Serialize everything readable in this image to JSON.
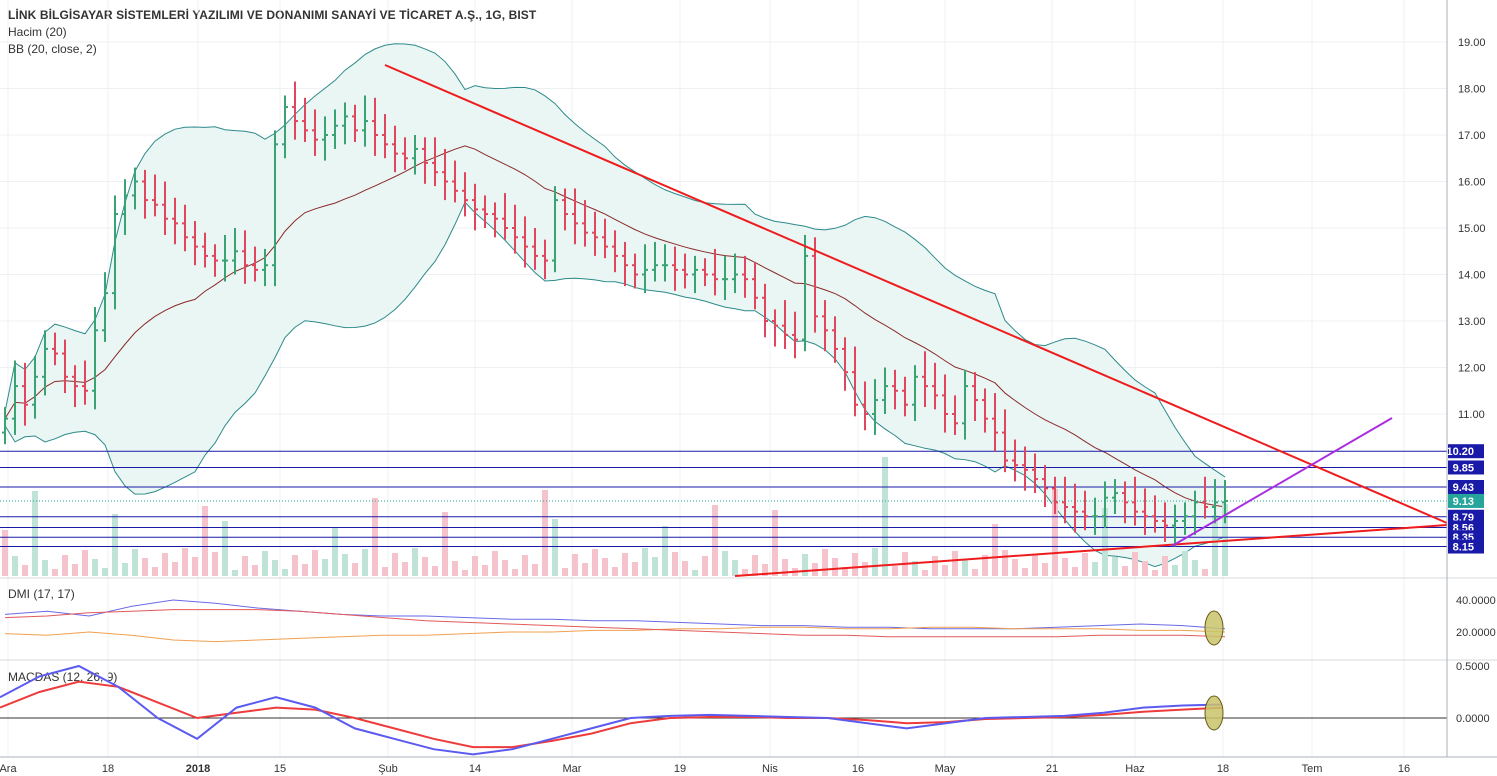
{
  "header": {
    "title": "LİNK BİLGİSAYAR SİSTEMLERİ YAZILIMI VE DONANIMI SANAYİ VE TİCARET A.Ş., 1G, BIST",
    "volume_label": "Hacim (20)",
    "bb_label": "BB (20, close, 2)"
  },
  "dmi": {
    "label": "DMI (17, 17)",
    "ticks": [
      "40.0000",
      "20.0000"
    ]
  },
  "macd": {
    "label": "MACDAS (12, 26, 9)",
    "ticks": [
      "0.5000",
      "0.0000"
    ]
  },
  "price_axis": {
    "ticks": [
      "19.00",
      "18.00",
      "17.00",
      "16.00",
      "15.00",
      "14.00",
      "13.00",
      "12.00",
      "11.00"
    ],
    "badges": [
      {
        "value": "10.20",
        "color": "#1a1aa8"
      },
      {
        "value": "9.85",
        "color": "#1a1aa8"
      },
      {
        "value": "9.43",
        "color": "#1a1aa8"
      },
      {
        "value": "9.13",
        "color": "#26a69a"
      },
      {
        "value": "8.79",
        "color": "#1a1aa8"
      },
      {
        "value": "8.56",
        "color": "#1a1aa8"
      },
      {
        "value": "8.35",
        "color": "#1a1aa8"
      },
      {
        "value": "8.15",
        "color": "#1a1aa8"
      }
    ]
  },
  "time_axis": {
    "labels": [
      "Ara",
      "18",
      "2018",
      "15",
      "Şub",
      "14",
      "Mar",
      "19",
      "Nis",
      "16",
      "May",
      "21",
      "Haz",
      "18",
      "Tem",
      "16"
    ]
  },
  "colors": {
    "up": "#3aa373",
    "down": "#e0465d",
    "band_fill": "#e9f6f4",
    "band_line": "#2d8a8a",
    "basis": "#8b2a2a",
    "trend": "#ee1c1c",
    "purple": "#a92ee0",
    "hline": "#1a1aa8",
    "macd": "#5b5bf0",
    "signal": "#ee3b3b",
    "dmi_plus": "#6a6ae8",
    "dmi_minus": "#f0a050",
    "adx": "#e25a5a"
  },
  "chart_data": {
    "type": "candlestick",
    "interval": "1G",
    "symbol": "BIST",
    "ylim": [
      8.0,
      19.4
    ],
    "horizontal_levels": [
      10.2,
      9.85,
      9.43,
      8.79,
      8.56,
      8.35,
      8.15
    ],
    "last_price": 9.13,
    "close_series": [
      10.9,
      11.6,
      11.2,
      11.8,
      12.4,
      12.3,
      11.8,
      11.6,
      11.5,
      12.8,
      13.6,
      15.3,
      15.7,
      16.0,
      15.6,
      15.5,
      15.2,
      15.1,
      14.8,
      14.6,
      14.4,
      14.3,
      14.3,
      14.5,
      14.2,
      14.1,
      14.2,
      16.8,
      17.6,
      17.3,
      17.1,
      16.9,
      17.0,
      17.2,
      17.4,
      17.1,
      17.3,
      17.0,
      16.8,
      16.6,
      16.5,
      16.7,
      16.4,
      16.2,
      16.0,
      15.8,
      15.6,
      15.4,
      15.3,
      15.2,
      15.0,
      14.8,
      14.6,
      14.4,
      14.3,
      15.6,
      15.3,
      15.1,
      14.9,
      14.8,
      14.6,
      14.4,
      14.2,
      14.0,
      14.1,
      14.2,
      14.2,
      14.1,
      14.0,
      14.1,
      14.0,
      13.9,
      13.9,
      14.0,
      13.9,
      13.5,
      13.0,
      12.9,
      12.7,
      12.6,
      14.4,
      13.1,
      12.8,
      12.4,
      11.9,
      11.2,
      11.0,
      11.3,
      11.6,
      11.5,
      11.2,
      11.8,
      11.6,
      11.4,
      11.0,
      10.8,
      11.6,
      11.3,
      10.9,
      10.6,
      10.0,
      9.9,
      9.8,
      9.6,
      9.4,
      9.1,
      9.0,
      8.9,
      8.8,
      8.8,
      9.2,
      9.3,
      9.1,
      8.9,
      8.8,
      8.7,
      8.6,
      8.7,
      8.8,
      9.1,
      9.0,
      9.1,
      9.13
    ],
    "volume_note": "volume histogram overlay at bottom of price pane",
    "dmi_series": {
      "plus_di": [
        31,
        33,
        30,
        36,
        40,
        38,
        35,
        33,
        31,
        30,
        30,
        29,
        28,
        28,
        27,
        27,
        26,
        25,
        24,
        24,
        23,
        23,
        22,
        22,
        22,
        23,
        24,
        25,
        24,
        22
      ],
      "minus_di": [
        19,
        18,
        20,
        18,
        15,
        14,
        15,
        16,
        17,
        18,
        18,
        19,
        20,
        20,
        21,
        21,
        22,
        22,
        23,
        23,
        22,
        22,
        23,
        23,
        22,
        22,
        22,
        21,
        21,
        20
      ],
      "adx": [
        29,
        30,
        32,
        33,
        34,
        34,
        34,
        33,
        31,
        29,
        27,
        26,
        25,
        24,
        23,
        22,
        21,
        20,
        19,
        18,
        18,
        17,
        17,
        17,
        17,
        17,
        18,
        18,
        18,
        17
      ]
    },
    "macd_series": {
      "macd": [
        0.2,
        0.4,
        0.5,
        0.3,
        0.0,
        -0.2,
        0.1,
        0.2,
        0.1,
        -0.1,
        -0.2,
        -0.3,
        -0.35,
        -0.3,
        -0.2,
        -0.1,
        0.0,
        0.02,
        0.03,
        0.02,
        0.01,
        0.0,
        -0.05,
        -0.1,
        -0.05,
        0.0,
        0.01,
        0.02,
        0.05,
        0.1,
        0.12,
        0.13
      ],
      "signal": [
        0.1,
        0.25,
        0.35,
        0.3,
        0.15,
        0.0,
        0.05,
        0.1,
        0.08,
        0.0,
        -0.1,
        -0.2,
        -0.28,
        -0.28,
        -0.22,
        -0.15,
        -0.05,
        0.0,
        0.01,
        0.01,
        0.0,
        0.0,
        -0.02,
        -0.05,
        -0.04,
        -0.01,
        0.0,
        0.01,
        0.03,
        0.06,
        0.08,
        0.1
      ]
    }
  }
}
